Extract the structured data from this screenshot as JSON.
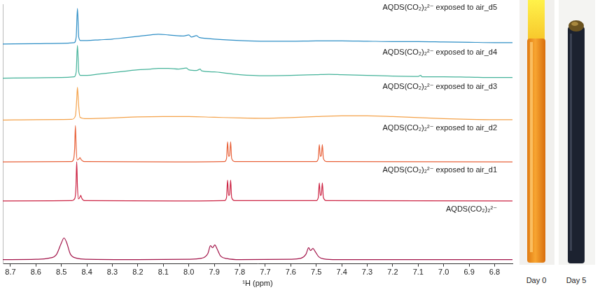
{
  "chart_data": {
    "type": "line",
    "x_label": "¹H (ppm)",
    "xlim": [
      8.73,
      6.73
    ],
    "xticks": [
      8.7,
      8.6,
      8.5,
      8.4,
      8.3,
      8.2,
      8.1,
      {
        "value": 8,
        "label": "8.0"
      },
      7.9,
      7.8,
      7.7,
      7.6,
      7.5,
      7.4,
      7.3,
      7.2,
      7.1,
      {
        "value": 7,
        "label": "7.0"
      },
      6.9,
      6.8
    ],
    "ylim": [
      0,
      372
    ],
    "tick_labels": "x",
    "grid": false,
    "series": [
      {
        "name": "AQDS(CO₂)₂²⁻",
        "color": "#a3154a",
        "x": [
          8.73,
          8.6,
          8.55,
          8.52,
          8.5,
          8.49,
          8.48,
          8.465,
          8.44,
          8.4,
          8.2,
          8.0,
          7.95,
          7.925,
          7.915,
          7.907,
          7.898,
          7.89,
          7.875,
          7.85,
          7.8,
          7.6,
          7.56,
          7.54,
          7.53,
          7.522,
          7.513,
          7.505,
          7.49,
          7.47,
          7.42,
          7.0,
          6.73
        ],
        "values": [
          6,
          6.5,
          8,
          13,
          30,
          37,
          31,
          14,
          8,
          6.5,
          6,
          6.5,
          8,
          15,
          26,
          23,
          27,
          22,
          11,
          7.5,
          6,
          6.5,
          8,
          14,
          23,
          19,
          22,
          18,
          10,
          7,
          6,
          6,
          6
        ]
      },
      {
        "name": "AQDS(CO₂)₂²⁻ exposed to air_d1",
        "color": "#cc2444",
        "x": [
          8.73,
          8.46,
          8.447,
          8.443,
          8.44,
          8.437,
          8.433,
          8.428,
          8.424,
          8.42,
          8.41,
          8.0,
          7.86,
          7.852,
          7.848,
          7.844,
          7.84,
          7.836,
          7.832,
          7.82,
          7.5,
          7.492,
          7.488,
          7.484,
          7.48,
          7.476,
          7.472,
          7.46,
          6.73
        ],
        "values": [
          90,
          90.5,
          94,
          110,
          146,
          110,
          93,
          95,
          98,
          94,
          90.5,
          90,
          90.5,
          95,
          120,
          98,
          99,
          120,
          95,
          90.5,
          90.5,
          95,
          116,
          98,
          99,
          116,
          95,
          90.5,
          90
        ]
      },
      {
        "name": "AQDS(CO₂)₂²⁻ exposed to air_d2",
        "color": "#e8623a",
        "x": [
          8.73,
          8.46,
          8.452,
          8.448,
          8.445,
          8.442,
          8.438,
          8.432,
          8.427,
          8.422,
          8.41,
          8.0,
          7.86,
          7.852,
          7.848,
          7.844,
          7.84,
          7.836,
          7.832,
          7.82,
          7.5,
          7.492,
          7.488,
          7.484,
          7.48,
          7.476,
          7.472,
          7.46,
          6.73
        ],
        "values": [
          146,
          146.5,
          150,
          166,
          198,
          166,
          149,
          150,
          152,
          149,
          146.5,
          146,
          146.5,
          151,
          175,
          154,
          155,
          175,
          151,
          146.5,
          146.5,
          151,
          171,
          154,
          155,
          171,
          151,
          146.5,
          146
        ]
      },
      {
        "name": "AQDS(CO₂)₂²⁻ exposed to air_d3",
        "color": "#f4a24a",
        "x": [
          8.73,
          8.6,
          8.46,
          8.445,
          8.44,
          8.437,
          8.433,
          8.427,
          8.4,
          8.3,
          8.2,
          8.1,
          8.0,
          7.9,
          7.8,
          7.7,
          7.6,
          7.5,
          7.4,
          7.3,
          7.2,
          7.1,
          7.0,
          6.9,
          6.8,
          6.73
        ],
        "values": [
          206,
          206.5,
          207,
          212,
          235,
          253,
          230,
          210,
          208,
          209,
          210.5,
          211,
          211,
          210,
          209,
          208.5,
          209.5,
          211,
          212,
          212,
          211,
          209.5,
          208,
          207,
          206.5,
          206.5
        ]
      },
      {
        "name": "AQDS(CO₂)₂²⁻ exposed to air_d4",
        "color": "#45b39a",
        "x": [
          8.73,
          8.6,
          8.5,
          8.45,
          8.442,
          8.437,
          8.432,
          8.425,
          8.4,
          8.35,
          8.3,
          8.25,
          8.2,
          8.15,
          8.12,
          8.08,
          8.04,
          8.01,
          8.0,
          7.97,
          7.955,
          7.95,
          7.9,
          7.85,
          7.8,
          7.7,
          7.6,
          7.5,
          7.45,
          7.4,
          7.3,
          7.2,
          7.1,
          7.09,
          7.085,
          7.0,
          6.9,
          6.8,
          6.73
        ],
        "values": [
          266,
          266.5,
          267,
          268,
          275,
          313,
          275,
          270,
          270,
          272,
          274,
          276,
          278,
          279,
          280,
          280,
          279,
          280.5,
          278,
          277,
          279,
          276.5,
          275,
          273,
          271,
          269.5,
          270,
          271,
          271.5,
          271,
          270,
          269,
          268.5,
          270,
          268,
          268,
          267.5,
          267,
          267
        ]
      },
      {
        "name": "AQDS(CO₂)₂²⁻ exposed to air_d5",
        "color": "#2f8fc6",
        "x": [
          8.73,
          8.6,
          8.5,
          8.45,
          8.442,
          8.437,
          8.432,
          8.425,
          8.4,
          8.35,
          8.3,
          8.25,
          8.2,
          8.15,
          8.12,
          8.08,
          8.05,
          8.02,
          8.0,
          7.99,
          7.97,
          7.96,
          7.93,
          7.9,
          7.8,
          7.7,
          7.6,
          7.5,
          7.4,
          7.3,
          7.2,
          7.1,
          7.0,
          6.9,
          6.8,
          6.73
        ],
        "values": [
          315,
          315.5,
          316,
          317,
          325,
          366,
          325,
          320,
          320,
          321,
          322,
          324,
          326,
          328,
          329,
          328,
          327,
          326.5,
          328,
          325,
          327,
          324.5,
          323,
          322,
          320,
          319,
          319,
          319.5,
          319.5,
          319,
          318.5,
          318.5,
          318,
          317.5,
          317,
          317
        ]
      }
    ]
  },
  "photos": [
    {
      "label": "Day 0"
    },
    {
      "label": "Day 5"
    }
  ]
}
